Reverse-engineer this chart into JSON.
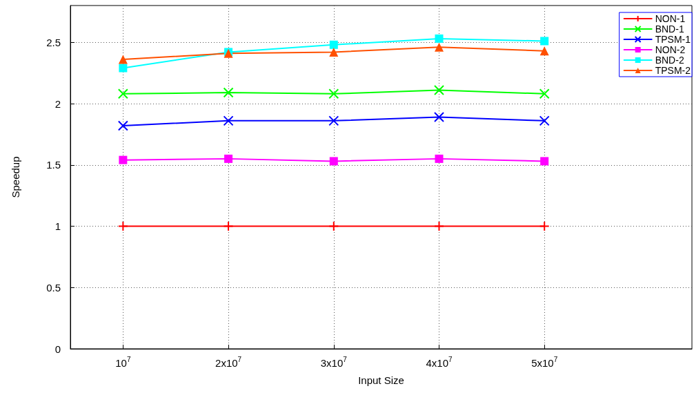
{
  "chart_data": {
    "type": "line",
    "xlabel": "Input Size",
    "ylabel": "Speedup",
    "x": [
      10000000,
      20000000,
      30000000,
      40000000,
      50000000
    ],
    "xlim": [
      5000000,
      64000000
    ],
    "xticks": [
      {
        "value": 10000000,
        "label": "10$^{7}$"
      },
      {
        "value": 20000000,
        "label": "2x10$^{7}$"
      },
      {
        "value": 30000000,
        "label": "3x10$^{7}$"
      },
      {
        "value": 40000000,
        "label": "4x10$^{7}$"
      },
      {
        "value": 50000000,
        "label": "5x10$^{7}$"
      }
    ],
    "ylim": [
      0,
      2.8
    ],
    "yticks": [
      0,
      0.5,
      1,
      1.5,
      2,
      2.5
    ],
    "grid": true,
    "legend": "top right",
    "line_style": "solid",
    "series": [
      {
        "name": "NON-1",
        "color": "#ff0000",
        "marker": "plus",
        "values": [
          1,
          1,
          1,
          1,
          1
        ]
      },
      {
        "name": "BND-1",
        "color": "#00ff00",
        "marker": "cross",
        "values": [
          2.08,
          2.09,
          2.08,
          2.11,
          2.08
        ]
      },
      {
        "name": "TPSM-1",
        "color": "#0000ff",
        "marker": "cross",
        "values": [
          1.82,
          1.86,
          1.86,
          1.89,
          1.86
        ]
      },
      {
        "name": "NON-2",
        "color": "#ff00ff",
        "marker": "square",
        "values": [
          1.54,
          1.55,
          1.53,
          1.55,
          1.53
        ]
      },
      {
        "name": "BND-2",
        "color": "#00ffff",
        "marker": "square",
        "values": [
          2.29,
          2.42,
          2.48,
          2.53,
          2.51
        ]
      },
      {
        "name": "TPSM-2",
        "color": "#ff5000",
        "marker": "triangle",
        "values": [
          2.36,
          2.41,
          2.42,
          2.46,
          2.43
        ]
      }
    ]
  }
}
